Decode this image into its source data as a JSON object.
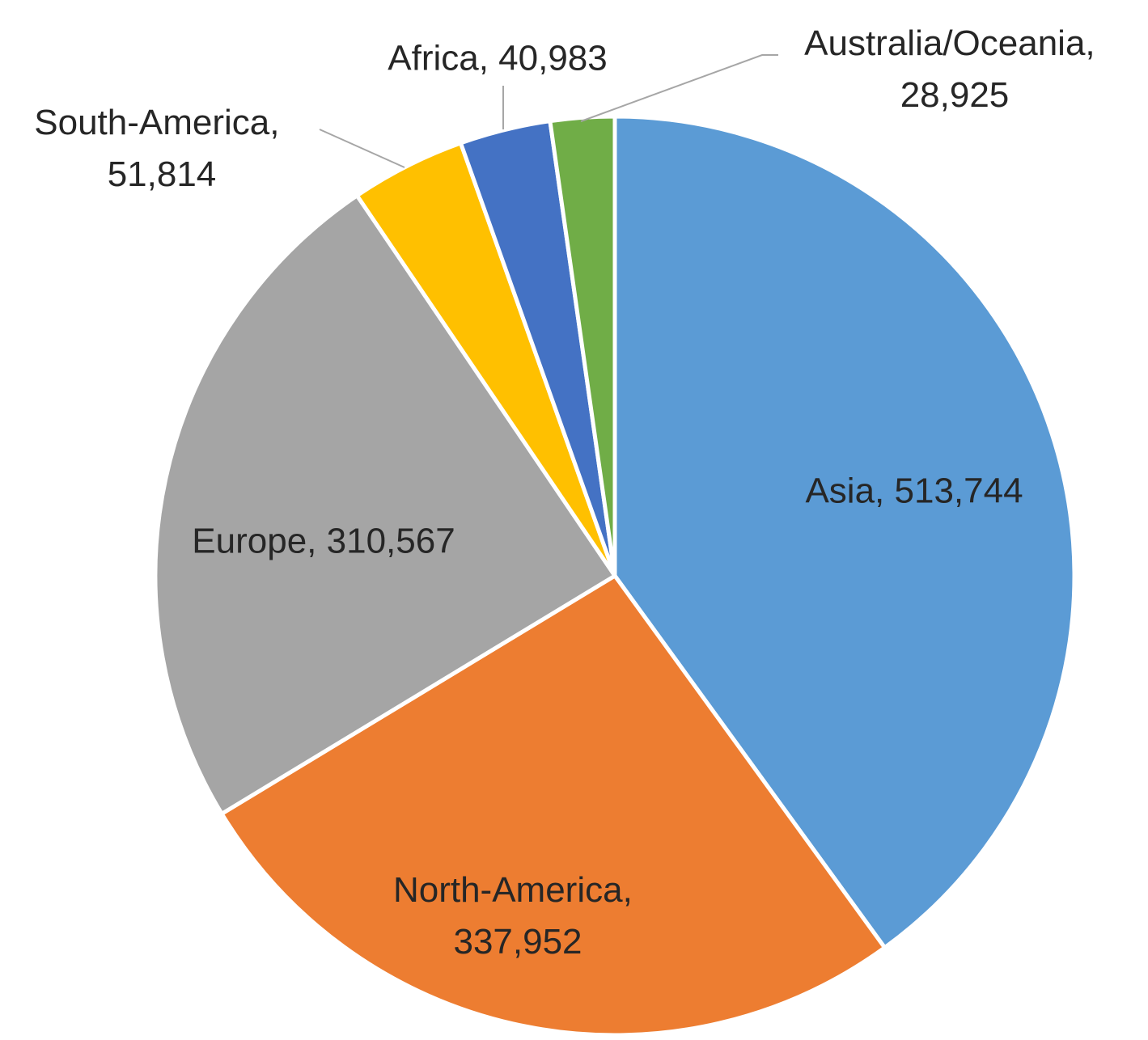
{
  "chart_data": {
    "type": "pie",
    "categories": [
      "Asia",
      "North-America",
      "Europe",
      "South-America",
      "Africa",
      "Australia/Oceania"
    ],
    "values": [
      513744,
      337952,
      310567,
      51814,
      40983,
      28925
    ],
    "value_labels": [
      "Asia, 513,744",
      "North-America, 337,952",
      "Europe, 310,567",
      "South-America, 51,814",
      "Africa, 40,983",
      "Australia/Oceania, 28,925"
    ],
    "colors": [
      "#5b9bd5",
      "#ed7d31",
      "#a5a5a5",
      "#ffc000",
      "#4472c4",
      "#70ad47"
    ]
  }
}
